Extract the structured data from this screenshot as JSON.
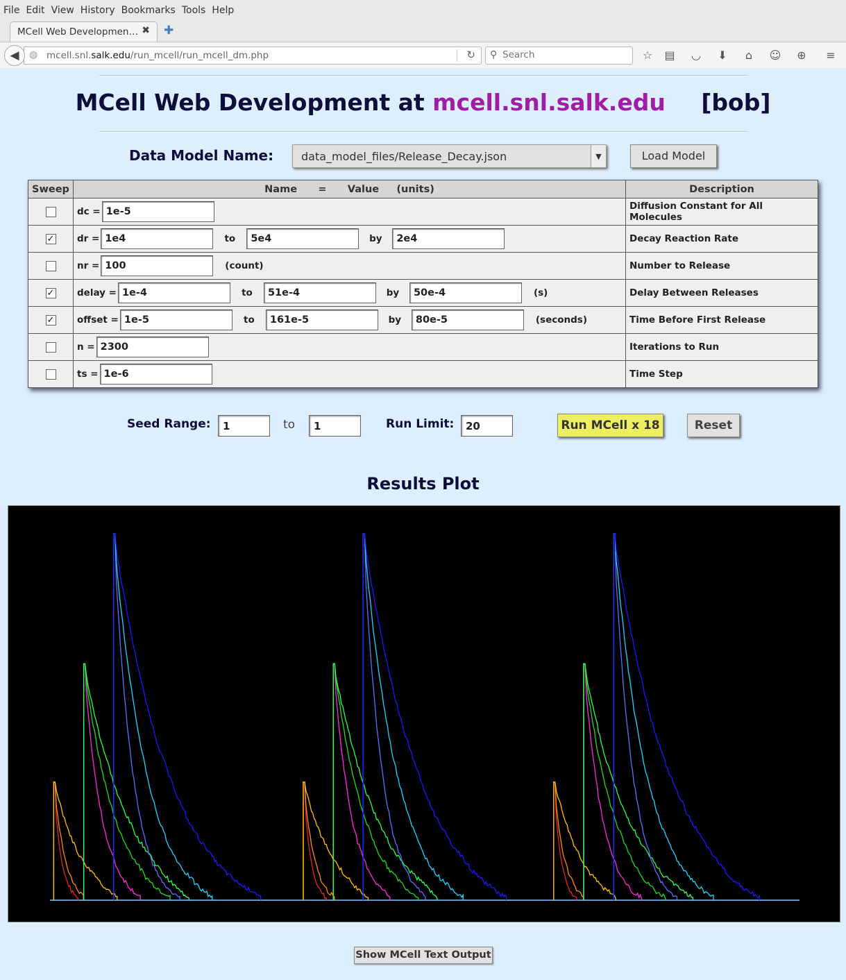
{
  "browser": {
    "menu": [
      "File",
      "Edit",
      "View",
      "History",
      "Bookmarks",
      "Tools",
      "Help"
    ],
    "tab_title": "MCell Web Developmen…",
    "url_prefix": "mcell.snl.",
    "url_domain": "salk.edu",
    "url_path": "/run_mcell/run_mcell_dm.php",
    "search_placeholder": "Search"
  },
  "header": {
    "title_prefix": "MCell Web Development at",
    "host": "mcell.snl.salk.edu",
    "user": "[bob]"
  },
  "data_model": {
    "label": "Data Model Name:",
    "selected": "data_model_files/Release_Decay.json",
    "load_button": "Load Model"
  },
  "table": {
    "headers": {
      "sweep": "Sweep",
      "name": "Name",
      "eq": "=",
      "value": "Value",
      "units": "(units)",
      "description": "Description"
    },
    "rows": [
      {
        "checked": false,
        "check_mark": "",
        "label": "dc =",
        "value": "1e-5",
        "to": "",
        "to_value": "",
        "by": "",
        "by_value": "",
        "units": "",
        "description": "Diffusion Constant for All Molecules"
      },
      {
        "checked": true,
        "check_mark": "✓",
        "label": "dr =",
        "value": "1e4",
        "to": "to",
        "to_value": "5e4",
        "by": "by",
        "by_value": "2e4",
        "units": "",
        "description": "Decay Reaction Rate"
      },
      {
        "checked": false,
        "check_mark": "",
        "label": "nr =",
        "value": "100",
        "to": "",
        "to_value": "",
        "by": "",
        "by_value": "",
        "units": "(count)",
        "description": "Number to Release"
      },
      {
        "checked": true,
        "check_mark": "✓",
        "label": "delay =",
        "value": "1e-4",
        "to": "to",
        "to_value": "51e-4",
        "by": "by",
        "by_value": "50e-4",
        "units": "(s)",
        "description": "Delay Between Releases"
      },
      {
        "checked": true,
        "check_mark": "✓",
        "label": "offset =",
        "value": "1e-5",
        "to": "to",
        "to_value": "161e-5",
        "by": "by",
        "by_value": "80e-5",
        "units": "(seconds)",
        "description": "Time Before First Release"
      },
      {
        "checked": false,
        "check_mark": "",
        "label": "n =",
        "value": "2300",
        "to": "",
        "to_value": "",
        "by": "",
        "by_value": "",
        "units": "",
        "description": "Iterations to Run"
      },
      {
        "checked": false,
        "check_mark": "",
        "label": "ts =",
        "value": "1e-6",
        "to": "",
        "to_value": "",
        "by": "",
        "by_value": "",
        "units": "",
        "description": "Time Step"
      }
    ]
  },
  "seed": {
    "label": "Seed Range:",
    "from": "1",
    "to_label": "to",
    "to": "1",
    "run_limit_label": "Run Limit:",
    "run_limit": "20",
    "run_button": "Run MCell x 18",
    "reset_button": "Reset"
  },
  "results": {
    "title": "Results Plot",
    "show_output_button": "Show MCell Text Output"
  },
  "chart_data": {
    "type": "line",
    "title": "",
    "xlabel": "",
    "ylabel": "",
    "grid": false,
    "background": "#000000",
    "groups": 3,
    "series": [
      {
        "color": "#e8281c",
        "start": 0.005,
        "peak": 0.3,
        "decay": 0.01
      },
      {
        "color": "#ff8c1a",
        "start": 0.005,
        "peak": 0.3,
        "decay": 0.015
      },
      {
        "color": "#ffc40c",
        "start": 0.005,
        "peak": 0.3,
        "decay": 0.045
      },
      {
        "color": "#ff2ed8",
        "start": 0.045,
        "peak": 0.6,
        "decay": 0.025
      },
      {
        "color": "#22dd22",
        "start": 0.045,
        "peak": 0.6,
        "decay": 0.045
      },
      {
        "color": "#33ff55",
        "start": 0.045,
        "peak": 0.6,
        "decay": 0.065
      },
      {
        "color": "#6070ff",
        "start": 0.085,
        "peak": 0.93,
        "decay": 0.025
      },
      {
        "color": "#22d8ff",
        "start": 0.085,
        "peak": 0.93,
        "decay": 0.045
      },
      {
        "color": "#1a1aff",
        "start": 0.085,
        "peak": 0.93,
        "decay": 0.08
      }
    ],
    "group_offsets": [
      0,
      0.333,
      0.667
    ],
    "tail": {
      "green_level": 0.03,
      "orange_level": 0.015
    }
  }
}
